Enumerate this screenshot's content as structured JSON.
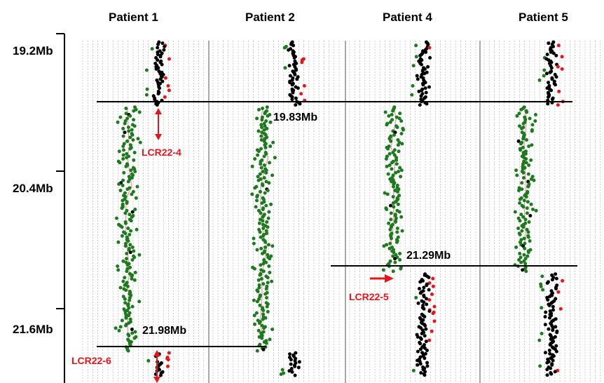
{
  "chart_data": {
    "type": "scatter",
    "y_axis": {
      "ticks": [
        {
          "label": "19.2Mb",
          "value": 19.2
        },
        {
          "label": "20.4Mb",
          "value": 20.4
        },
        {
          "label": "21.6Mb",
          "value": 21.6
        }
      ],
      "range": [
        19.2,
        21.98
      ],
      "inverted": true
    },
    "colors": {
      "flank": "#000000",
      "deleted": "#1d7a1d",
      "outlier": "#e8141b",
      "trace": "#e79aa6",
      "annotation": "#e8141b",
      "guide": "#b8b8b8",
      "axis": "#000000"
    },
    "panels": [
      {
        "title": "Patient 1",
        "deletion_start": 19.83,
        "deletion_end": 21.98,
        "segments": [
          {
            "from": 19.2,
            "to": 19.83,
            "state": "normal",
            "center_offset": 0.62
          },
          {
            "from": 19.83,
            "to": 21.98,
            "state": "deleted",
            "center_offset": 0.38
          },
          {
            "from": 21.98,
            "to": 22.2,
            "state": "normal",
            "center_offset": 0.62
          }
        ]
      },
      {
        "title": "Patient 2",
        "deletion_start": 19.83,
        "deletion_end": 21.98,
        "segments": [
          {
            "from": 19.2,
            "to": 19.83,
            "state": "normal",
            "center_offset": 0.62
          },
          {
            "from": 19.83,
            "to": 21.98,
            "state": "deleted",
            "center_offset": 0.4
          },
          {
            "from": 21.98,
            "to": 22.2,
            "state": "normal",
            "center_offset": 0.62
          }
        ]
      },
      {
        "title": "Patient 4",
        "deletion_start": 19.83,
        "deletion_end": 21.29,
        "segments": [
          {
            "from": 19.2,
            "to": 19.83,
            "state": "normal",
            "center_offset": 0.58
          },
          {
            "from": 19.83,
            "to": 21.29,
            "state": "deleted",
            "center_offset": 0.36
          },
          {
            "from": 21.29,
            "to": 22.2,
            "state": "normal",
            "center_offset": 0.58
          }
        ]
      },
      {
        "title": "Patient 5",
        "deletion_start": 19.83,
        "deletion_end": 21.29,
        "segments": [
          {
            "from": 19.2,
            "to": 19.83,
            "state": "normal",
            "center_offset": 0.58
          },
          {
            "from": 19.83,
            "to": 21.29,
            "state": "deleted",
            "center_offset": 0.36
          },
          {
            "from": 21.29,
            "to": 22.2,
            "state": "normal",
            "center_offset": 0.58
          }
        ]
      }
    ],
    "breakpoint_labels": [
      {
        "text": "19.83Mb",
        "value": 19.83
      },
      {
        "text": "21.29Mb",
        "value": 21.29
      },
      {
        "text": "21.98Mb",
        "value": 21.98
      }
    ],
    "annotations": [
      {
        "text": "LCR22-4",
        "near": 19.83
      },
      {
        "text": "LCR22-5",
        "near": 21.29
      },
      {
        "text": "LCR22-6",
        "near": 21.98
      }
    ]
  }
}
